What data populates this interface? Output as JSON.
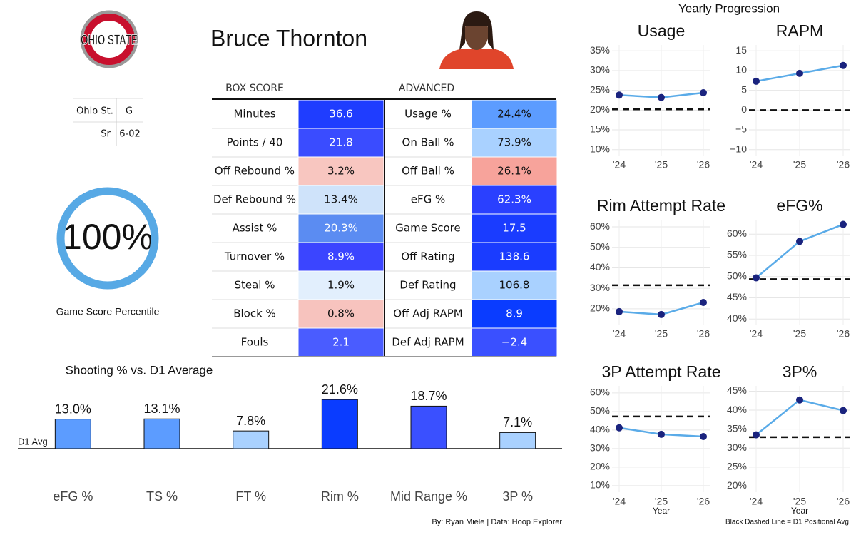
{
  "header": {
    "logo_text": "OHIO STATE",
    "player": "Bruce Thornton",
    "info": [
      [
        "Ohio St.",
        "G"
      ],
      [
        "Sr",
        "6-02"
      ]
    ]
  },
  "gauge": {
    "value": 100,
    "value_label": "100%",
    "label": "Game Score Percentile",
    "color": "#57a9e5"
  },
  "table": {
    "headers": [
      "BOX SCORE",
      "ADVANCED"
    ],
    "box_score": [
      [
        "Minutes",
        "36.6",
        "#1f3dff"
      ],
      [
        "Points / 40",
        "21.8",
        "#3a4cff"
      ],
      [
        "Off Rebound %",
        "3.2%",
        "#f8c6c0"
      ],
      [
        "Def Rebound %",
        "13.4%",
        "#cfe3fa"
      ],
      [
        "Assist %",
        "20.3%",
        "#5b8cf2"
      ],
      [
        "Turnover %",
        "8.9%",
        "#3b45ff"
      ],
      [
        "Steal %",
        "1.9%",
        "#e2effd"
      ],
      [
        "Block %",
        "0.8%",
        "#f7c3be"
      ],
      [
        "Fouls",
        "2.1",
        "#4a5cff"
      ]
    ],
    "advanced": [
      [
        "Usage %",
        "24.4%",
        "#5c9cff"
      ],
      [
        "On Ball %",
        "73.9%",
        "#a9d1ff"
      ],
      [
        "Off Ball %",
        "26.1%",
        "#f7a39b"
      ],
      [
        "eFG %",
        "62.3%",
        "#2a40ff"
      ],
      [
        "Game Score",
        "17.5",
        "#1a3cff"
      ],
      [
        "Off Rating",
        "138.6",
        "#1a3cff"
      ],
      [
        "Def Rating",
        "106.8",
        "#a9d1ff"
      ],
      [
        "Off Adj RAPM",
        "8.9",
        "#0a3cff"
      ],
      [
        "Def Adj RAPM",
        "−2.4",
        "#3a50ff"
      ]
    ]
  },
  "progression_title": "Yearly Progression",
  "credit": "By: Ryan Miele | Data: Hoop Explorer",
  "note": "Black Dashed Line = D1 Positional Avg",
  "chart_data": [
    {
      "type": "bar",
      "title": "Shooting % vs. D1 Average",
      "categories": [
        "eFG %",
        "TS %",
        "FT %",
        "Rim %",
        "Mid Range %",
        "3P %"
      ],
      "values": [
        13.0,
        13.1,
        7.8,
        21.6,
        18.7,
        7.1
      ],
      "value_labels": [
        "13.0%",
        "13.1%",
        "7.8%",
        "21.6%",
        "18.7%",
        "7.1%"
      ],
      "colors": [
        "#5c9cff",
        "#5c9cff",
        "#a9d1ff",
        "#0a3cff",
        "#3a50ff",
        "#a9d1ff"
      ],
      "ylim": [
        -16,
        29.5
      ],
      "reference": {
        "value": 0,
        "label": "D1 Avg"
      }
    },
    {
      "type": "line",
      "title": "Usage",
      "categories": [
        "'24",
        "'25",
        "'26"
      ],
      "values": [
        23.8,
        23.2,
        24.4
      ],
      "reference": 20.2,
      "ylim": [
        8.5,
        36.5
      ],
      "yticks": [
        {
          "value": 10,
          "label": "10%"
        },
        {
          "value": 15,
          "label": "15%"
        },
        {
          "value": 20,
          "label": "20%"
        },
        {
          "value": 25,
          "label": "25%"
        },
        {
          "value": 30,
          "label": "30%"
        },
        {
          "value": 35,
          "label": "35%"
        }
      ]
    },
    {
      "type": "line",
      "title": "RAPM",
      "categories": [
        "'24",
        "'25",
        "'26"
      ],
      "values": [
        7.3,
        9.3,
        11.3
      ],
      "reference": 0,
      "ylim": [
        -11.5,
        16.5
      ],
      "yticks": [
        {
          "value": -10,
          "label": "−10"
        },
        {
          "value": -5,
          "label": "−5"
        },
        0,
        5,
        10,
        15
      ]
    },
    {
      "type": "line",
      "title": "Rim Attempt Rate",
      "categories": [
        "'24",
        "'25",
        "'26"
      ],
      "values": [
        18.6,
        17.2,
        23.1
      ],
      "reference": 31.5,
      "ylim": [
        12.3,
        63.5
      ],
      "yticks": [
        {
          "value": 20,
          "label": "20%"
        },
        {
          "value": 30,
          "label": "30%"
        },
        {
          "value": 40,
          "label": "40%"
        },
        {
          "value": 50,
          "label": "50%"
        },
        {
          "value": 60,
          "label": "60%"
        }
      ]
    },
    {
      "type": "line",
      "title": "eFG%",
      "categories": [
        "'24",
        "'25",
        "'26"
      ],
      "values": [
        49.7,
        58.3,
        62.3
      ],
      "reference": 49.4,
      "ylim": [
        38.7,
        63.4
      ],
      "yticks": [
        {
          "value": 40,
          "label": "40%"
        },
        {
          "value": 45,
          "label": "45%"
        },
        {
          "value": 50,
          "label": "50%"
        },
        {
          "value": 55,
          "label": "55%"
        },
        {
          "value": 60,
          "label": "60%"
        }
      ]
    },
    {
      "type": "line",
      "title": "3P Attempt Rate",
      "categories": [
        "'24",
        "'25",
        "'26"
      ],
      "values": [
        41.2,
        37.7,
        36.5
      ],
      "reference": 47.3,
      "ylim": [
        6.5,
        63.8
      ],
      "xlabel": "Year",
      "yticks": [
        {
          "value": 10,
          "label": "10%"
        },
        {
          "value": 20,
          "label": "20%"
        },
        {
          "value": 30,
          "label": "30%"
        },
        {
          "value": 40,
          "label": "40%"
        },
        {
          "value": 50,
          "label": "50%"
        },
        {
          "value": 60,
          "label": "60%"
        }
      ]
    },
    {
      "type": "line",
      "title": "3P%",
      "categories": [
        "'24",
        "'25",
        "'26"
      ],
      "values": [
        33.5,
        42.7,
        39.9
      ],
      "reference": 32.9,
      "ylim": [
        18.4,
        46.4
      ],
      "xlabel": "Year",
      "yticks": [
        {
          "value": 20,
          "label": "20%"
        },
        {
          "value": 25,
          "label": "25%"
        },
        {
          "value": 30,
          "label": "30%"
        },
        {
          "value": 35,
          "label": "35%"
        },
        {
          "value": 40,
          "label": "40%"
        },
        {
          "value": 45,
          "label": "45%"
        }
      ]
    }
  ]
}
